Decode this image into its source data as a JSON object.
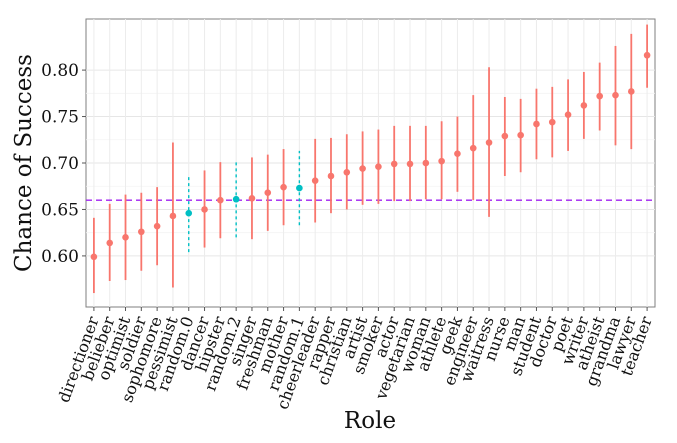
{
  "chart_data": {
    "type": "scatter",
    "xlabel": "Role",
    "ylabel": "Chance of Success",
    "ylim": [
      0.545,
      0.855
    ],
    "yticks": [
      0.6,
      0.65,
      0.7,
      0.75,
      0.8
    ],
    "ytick_labels": [
      "0.60",
      "0.65",
      "0.70",
      "0.75",
      "0.80"
    ],
    "grid": true,
    "reference_line": {
      "y": 0.66,
      "color": "#a020f0",
      "style": "dashed"
    },
    "colors": {
      "role": "#f8766d",
      "random": "#00bfc4"
    },
    "points": [
      {
        "label": "directioner",
        "y": 0.599,
        "low": 0.56,
        "high": 0.641,
        "group": "role"
      },
      {
        "label": "belieber",
        "y": 0.614,
        "low": 0.573,
        "high": 0.656,
        "group": "role"
      },
      {
        "label": "optimist",
        "y": 0.62,
        "low": 0.574,
        "high": 0.666,
        "group": "role"
      },
      {
        "label": "soldier",
        "y": 0.626,
        "low": 0.584,
        "high": 0.668,
        "group": "role"
      },
      {
        "label": "sophomore",
        "y": 0.632,
        "low": 0.59,
        "high": 0.674,
        "group": "role"
      },
      {
        "label": "pessimist",
        "y": 0.643,
        "low": 0.566,
        "high": 0.722,
        "group": "role"
      },
      {
        "label": "random.0",
        "y": 0.646,
        "low": 0.604,
        "high": 0.688,
        "group": "random"
      },
      {
        "label": "dancer",
        "y": 0.65,
        "low": 0.609,
        "high": 0.692,
        "group": "role"
      },
      {
        "label": "hipster",
        "y": 0.66,
        "low": 0.619,
        "high": 0.701,
        "group": "role"
      },
      {
        "label": "random.2",
        "y": 0.661,
        "low": 0.62,
        "high": 0.702,
        "group": "random"
      },
      {
        "label": "singer",
        "y": 0.662,
        "low": 0.618,
        "high": 0.706,
        "group": "role"
      },
      {
        "label": "freshman",
        "y": 0.668,
        "low": 0.627,
        "high": 0.709,
        "group": "role"
      },
      {
        "label": "mother",
        "y": 0.674,
        "low": 0.633,
        "high": 0.715,
        "group": "role"
      },
      {
        "label": "random.1",
        "y": 0.673,
        "low": 0.633,
        "high": 0.713,
        "group": "random"
      },
      {
        "label": "cheerleader",
        "y": 0.681,
        "low": 0.636,
        "high": 0.726,
        "group": "role"
      },
      {
        "label": "rapper",
        "y": 0.686,
        "low": 0.646,
        "high": 0.727,
        "group": "role"
      },
      {
        "label": "christian",
        "y": 0.69,
        "low": 0.65,
        "high": 0.731,
        "group": "role"
      },
      {
        "label": "artist",
        "y": 0.694,
        "low": 0.655,
        "high": 0.734,
        "group": "role"
      },
      {
        "label": "smoker",
        "y": 0.696,
        "low": 0.656,
        "high": 0.736,
        "group": "role"
      },
      {
        "label": "actor",
        "y": 0.699,
        "low": 0.659,
        "high": 0.74,
        "group": "role"
      },
      {
        "label": "vegetarian",
        "y": 0.699,
        "low": 0.659,
        "high": 0.74,
        "group": "role"
      },
      {
        "label": "woman",
        "y": 0.7,
        "low": 0.661,
        "high": 0.74,
        "group": "role"
      },
      {
        "label": "athlete",
        "y": 0.702,
        "low": 0.661,
        "high": 0.745,
        "group": "role"
      },
      {
        "label": "geek",
        "y": 0.71,
        "low": 0.669,
        "high": 0.75,
        "group": "role"
      },
      {
        "label": "engineer",
        "y": 0.716,
        "low": 0.66,
        "high": 0.773,
        "group": "role"
      },
      {
        "label": "waitress",
        "y": 0.722,
        "low": 0.642,
        "high": 0.803,
        "group": "role"
      },
      {
        "label": "nurse",
        "y": 0.729,
        "low": 0.686,
        "high": 0.771,
        "group": "role"
      },
      {
        "label": "man",
        "y": 0.73,
        "low": 0.69,
        "high": 0.769,
        "group": "role"
      },
      {
        "label": "student",
        "y": 0.742,
        "low": 0.704,
        "high": 0.78,
        "group": "role"
      },
      {
        "label": "doctor",
        "y": 0.744,
        "low": 0.706,
        "high": 0.782,
        "group": "role"
      },
      {
        "label": "poet",
        "y": 0.752,
        "low": 0.713,
        "high": 0.79,
        "group": "role"
      },
      {
        "label": "writer",
        "y": 0.762,
        "low": 0.726,
        "high": 0.798,
        "group": "role"
      },
      {
        "label": "atheist",
        "y": 0.772,
        "low": 0.735,
        "high": 0.808,
        "group": "role"
      },
      {
        "label": "grandma",
        "y": 0.773,
        "low": 0.719,
        "high": 0.826,
        "group": "role"
      },
      {
        "label": "lawyer",
        "y": 0.777,
        "low": 0.715,
        "high": 0.839,
        "group": "role"
      },
      {
        "label": "teacher",
        "y": 0.816,
        "low": 0.781,
        "high": 0.849,
        "group": "role"
      }
    ]
  }
}
